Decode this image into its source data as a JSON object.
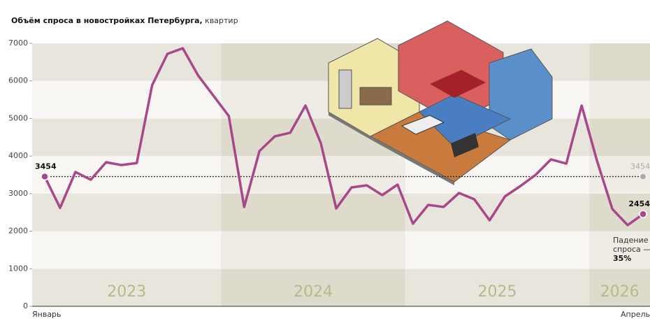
{
  "chart_data": {
    "type": "line",
    "title": "Объём спроса в новостройках Петербурга,",
    "title_suffix": "квартир",
    "categories": [
      "Январь",
      null,
      null,
      null,
      null,
      null,
      null,
      null,
      null,
      null,
      null,
      null,
      null,
      null,
      null,
      null,
      null,
      null,
      null,
      null,
      null,
      null,
      null,
      null,
      null,
      null,
      null,
      null,
      null,
      null,
      null,
      null,
      null,
      null,
      null,
      null,
      null,
      null,
      null,
      "Апрель"
    ],
    "values": [
      3454,
      2620,
      3575,
      3370,
      3835,
      3760,
      3815,
      5885,
      6720,
      6870,
      6145,
      5605,
      5065,
      2645,
      4135,
      4525,
      4620,
      5345,
      4340,
      2605,
      3165,
      3220,
      2960,
      3240,
      2200,
      2700,
      2645,
      3015,
      2850,
      2290,
      2925,
      3200,
      3500,
      3910,
      3800,
      5345,
      3875,
      2590,
      2160,
      2454
    ],
    "color": "#a8478a",
    "years": [
      "2023",
      "2024",
      "2025",
      "2026"
    ],
    "reference_value": 3454,
    "annotation": {
      "text_line1": "Падение",
      "text_line2": "спроса —",
      "emphasis": "35%"
    },
    "ylim": [
      0,
      7000
    ],
    "yticks": [
      0,
      1000,
      2000,
      3000,
      4000,
      5000,
      6000,
      7000
    ]
  }
}
